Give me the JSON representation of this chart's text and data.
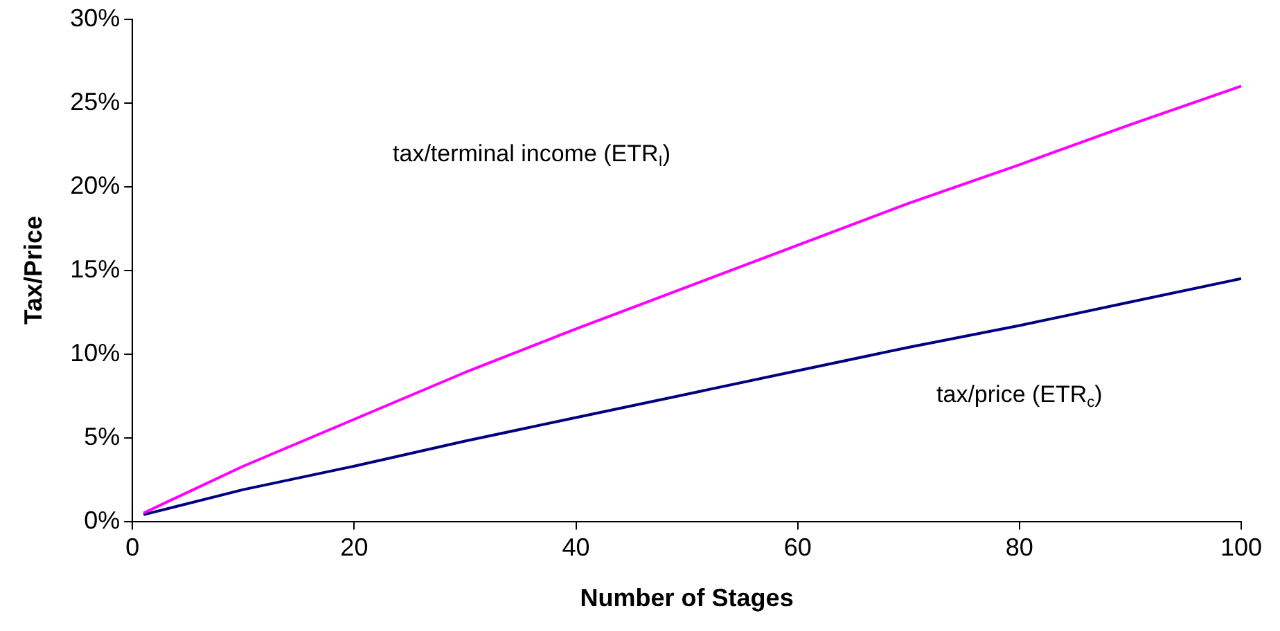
{
  "chart_data": {
    "type": "line",
    "xlabel": "Number of Stages",
    "ylabel": "Tax/Price",
    "x": [
      1,
      10,
      20,
      30,
      40,
      50,
      60,
      70,
      80,
      90,
      100
    ],
    "series": [
      {
        "color": "#ff00ff",
        "values": [
          0.5,
          3.3,
          6.1,
          8.9,
          11.5,
          14.0,
          16.5,
          19.0,
          21.3,
          23.7,
          26.0
        ]
      },
      {
        "color": "#000080",
        "values": [
          0.4,
          1.9,
          3.3,
          4.8,
          6.2,
          7.6,
          9.0,
          10.4,
          11.7,
          13.1,
          14.5
        ]
      }
    ],
    "xlim": [
      0,
      100
    ],
    "xticks": [
      0,
      20,
      40,
      60,
      80,
      100
    ],
    "ylim": [
      0,
      30
    ],
    "yticks": [
      {
        "value": 0,
        "label": "0%"
      },
      {
        "value": 5,
        "label": "5%"
      },
      {
        "value": 10,
        "label": "10%"
      },
      {
        "value": 15,
        "label": "15%"
      },
      {
        "value": 20,
        "label": "20%"
      },
      {
        "value": 25,
        "label": "25%"
      },
      {
        "value": 30,
        "label": "30%"
      }
    ],
    "annotations": [
      "tax/terminal income (ETR$_{I}$)",
      "tax/price (ETR$_{c}$)"
    ],
    "grid": false,
    "legend": false,
    "marker": "none",
    "line_style": "solid"
  }
}
